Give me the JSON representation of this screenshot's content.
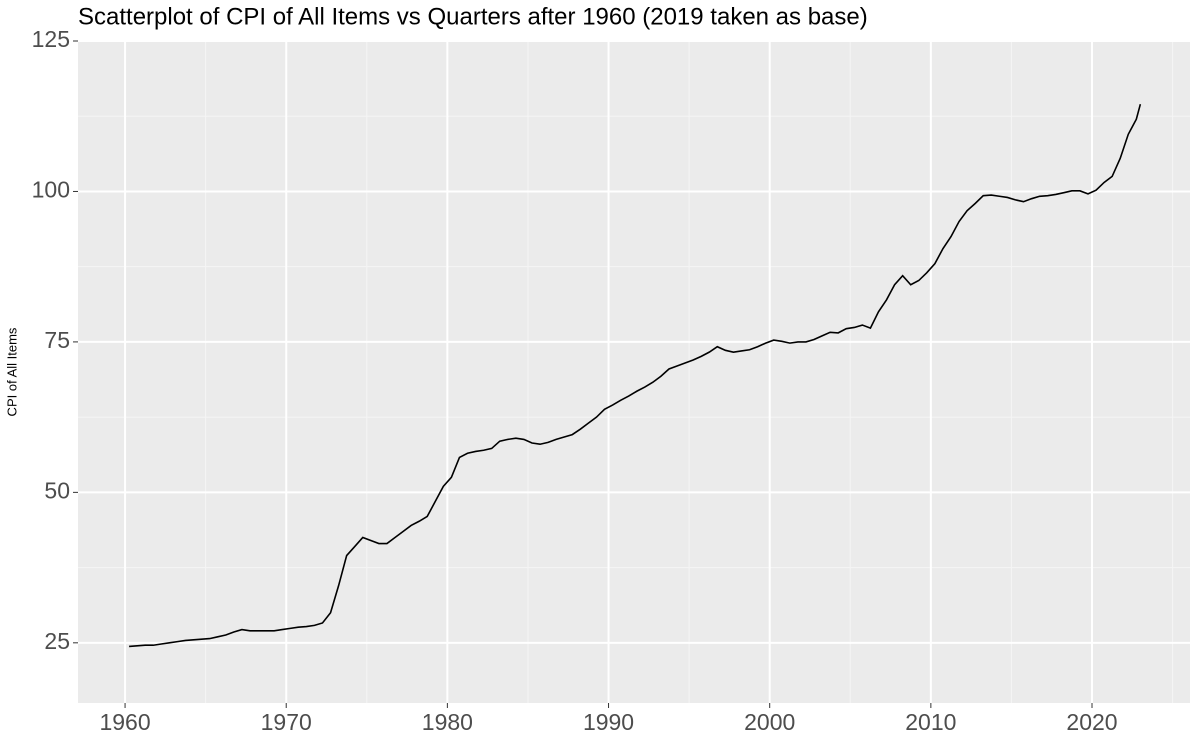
{
  "chart_data": {
    "type": "line",
    "title": "Scatterplot of CPI of All Items vs Quarters after 1960 (2019 taken as base)",
    "y_label": "CPI of All Items",
    "x": [
      1960.25,
      1960.75,
      1961.25,
      1961.75,
      1962.25,
      1962.75,
      1963.25,
      1963.75,
      1964.25,
      1964.75,
      1965.25,
      1965.75,
      1966.25,
      1966.75,
      1967.25,
      1967.75,
      1968.25,
      1968.75,
      1969.25,
      1969.75,
      1970.25,
      1970.75,
      1971.25,
      1971.75,
      1972.25,
      1972.75,
      1973.25,
      1973.75,
      1974.25,
      1974.75,
      1975.25,
      1975.75,
      1976.25,
      1976.75,
      1977.25,
      1977.75,
      1978.25,
      1978.75,
      1979.25,
      1979.75,
      1980.25,
      1980.75,
      1981.25,
      1981.75,
      1982.25,
      1982.75,
      1983.25,
      1983.75,
      1984.25,
      1984.75,
      1985.25,
      1985.75,
      1986.25,
      1986.75,
      1987.25,
      1987.75,
      1988.25,
      1988.75,
      1989.25,
      1989.75,
      1990.25,
      1990.75,
      1991.25,
      1991.75,
      1992.25,
      1992.75,
      1993.25,
      1993.75,
      1994.25,
      1994.75,
      1995.25,
      1995.75,
      1996.25,
      1996.75,
      1997.25,
      1997.75,
      1998.25,
      1998.75,
      1999.25,
      1999.75,
      2000.25,
      2000.75,
      2001.25,
      2001.75,
      2002.25,
      2002.75,
      2003.25,
      2003.75,
      2004.25,
      2004.75,
      2005.25,
      2005.75,
      2006.25,
      2006.75,
      2007.25,
      2007.75,
      2008.25,
      2008.75,
      2009.25,
      2009.75,
      2010.25,
      2010.75,
      2011.25,
      2011.75,
      2012.25,
      2012.75,
      2013.25,
      2013.75,
      2014.25,
      2014.75,
      2015.25,
      2015.75,
      2016.25,
      2016.75,
      2017.25,
      2017.75,
      2018.25,
      2018.75,
      2019.25,
      2019.75,
      2020.25,
      2020.75,
      2021.25,
      2021.75,
      2022.25,
      2022.75,
      2023.0
    ],
    "series": [
      {
        "color": "#000000",
        "values": [
          24.4,
          24.5,
          24.6,
          24.6,
          24.8,
          25.0,
          25.2,
          25.4,
          25.5,
          25.6,
          25.7,
          26.0,
          26.3,
          26.8,
          27.2,
          27.0,
          27.0,
          27.0,
          27.0,
          27.2,
          27.4,
          27.6,
          27.7,
          27.9,
          28.3,
          30.0,
          34.5,
          39.5,
          41.0,
          42.5,
          42.0,
          41.5,
          41.5,
          42.5,
          43.5,
          44.5,
          45.2,
          46.0,
          48.5,
          51.0,
          52.5,
          55.8,
          56.5,
          56.8,
          57.0,
          57.3,
          58.5,
          58.8,
          59.0,
          58.8,
          58.2,
          58.0,
          58.3,
          58.8,
          59.2,
          59.6,
          60.5,
          61.5,
          62.5,
          63.8,
          64.5,
          65.3,
          66.0,
          66.8,
          67.5,
          68.3,
          69.3,
          70.5,
          71.0,
          71.5,
          72.0,
          72.6,
          73.3,
          74.2,
          73.6,
          73.3,
          73.5,
          73.7,
          74.2,
          74.8,
          75.3,
          75.1,
          74.8,
          75.0,
          75.0,
          75.4,
          76.0,
          76.6,
          76.5,
          77.2,
          77.4,
          77.8,
          77.3,
          80.0,
          82.0,
          84.5,
          86.0,
          84.5,
          85.2,
          86.5,
          88.0,
          90.5,
          92.5,
          95.0,
          96.8,
          98.0,
          99.3,
          99.4,
          99.2,
          99.0,
          98.6,
          98.3,
          98.8,
          99.2,
          99.3,
          99.5,
          99.8,
          100.1,
          100.1,
          99.6,
          100.2,
          101.5,
          102.5,
          105.5,
          109.5,
          112.0,
          114.5
        ]
      }
    ],
    "xlim": [
      1957.08,
      2026.08
    ],
    "xticks": [
      1960,
      1970,
      1980,
      1990,
      2000,
      2010,
      2020
    ],
    "ylim": [
      15.0,
      125.0
    ],
    "yticks": [
      25,
      50,
      75,
      100,
      125
    ],
    "grid": true
  }
}
